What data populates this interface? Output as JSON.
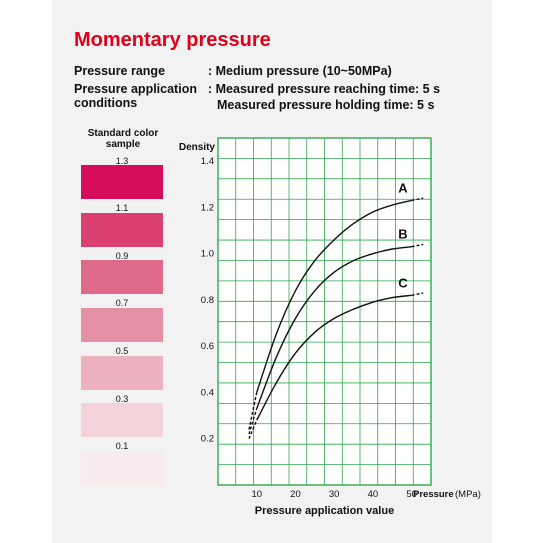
{
  "title": "Momentary pressure",
  "specs": {
    "range_label": "Pressure range",
    "range_value": ": Medium pressure (10~50MPa)",
    "time_label_1": "Pressure application",
    "time_label_2": "conditions",
    "time_value_1": ": Measured pressure reaching time: 5 s",
    "time_value_2": "Measured pressure holding time: 5 s"
  },
  "swatches": {
    "header_1": "Standard color",
    "header_2": "sample",
    "items": [
      {
        "label": "1.3",
        "color": "#d50d5a"
      },
      {
        "label": "1.1",
        "color": "#da4170"
      },
      {
        "label": "0.9",
        "color": "#df6a8a"
      },
      {
        "label": "0.7",
        "color": "#e590a5"
      },
      {
        "label": "0.5",
        "color": "#ecb2c0"
      },
      {
        "label": "0.3",
        "color": "#f3d2da"
      },
      {
        "label": "0.1",
        "color": "#f8ebee"
      }
    ]
  },
  "chart_data": {
    "type": "line",
    "ylabel": "Density",
    "xlabel": "Pressure application value",
    "x_axis_label": "Pressure",
    "x_axis_unit": "(MPa)",
    "xlim": [
      0,
      55
    ],
    "ylim": [
      0,
      1.5
    ],
    "x_ticks": [
      10,
      20,
      30,
      40,
      50
    ],
    "y_ticks": [
      0.2,
      0.4,
      0.6,
      0.8,
      1.0,
      1.2,
      1.4
    ],
    "y_tick_labels": [
      "0.2",
      "0.4",
      "0.6",
      "0.8",
      "1.0",
      "1.2",
      "1.4"
    ],
    "grid": true,
    "grid_color": "#2fa84f",
    "series": [
      {
        "name": "A",
        "x": [
          8,
          10,
          15,
          20,
          25,
          30,
          35,
          40,
          45,
          50
        ],
        "y": [
          0.24,
          0.4,
          0.65,
          0.84,
          0.97,
          1.06,
          1.13,
          1.18,
          1.21,
          1.23
        ],
        "dashed_from": 50,
        "x_ext": [
          50,
          53
        ],
        "y_ext": [
          1.23,
          1.24
        ]
      },
      {
        "name": "B",
        "x": [
          8,
          10,
          15,
          20,
          25,
          30,
          35,
          40,
          45,
          50
        ],
        "y": [
          0.22,
          0.33,
          0.55,
          0.72,
          0.84,
          0.92,
          0.97,
          1.0,
          1.02,
          1.03
        ],
        "x_ext": [
          50,
          53
        ],
        "y_ext": [
          1.03,
          1.04
        ]
      },
      {
        "name": "C",
        "x": [
          8,
          10,
          15,
          20,
          25,
          30,
          35,
          40,
          45,
          50
        ],
        "y": [
          0.2,
          0.28,
          0.44,
          0.57,
          0.66,
          0.72,
          0.76,
          0.79,
          0.81,
          0.82
        ],
        "x_ext": [
          50,
          53
        ],
        "y_ext": [
          0.82,
          0.83
        ]
      }
    ]
  }
}
